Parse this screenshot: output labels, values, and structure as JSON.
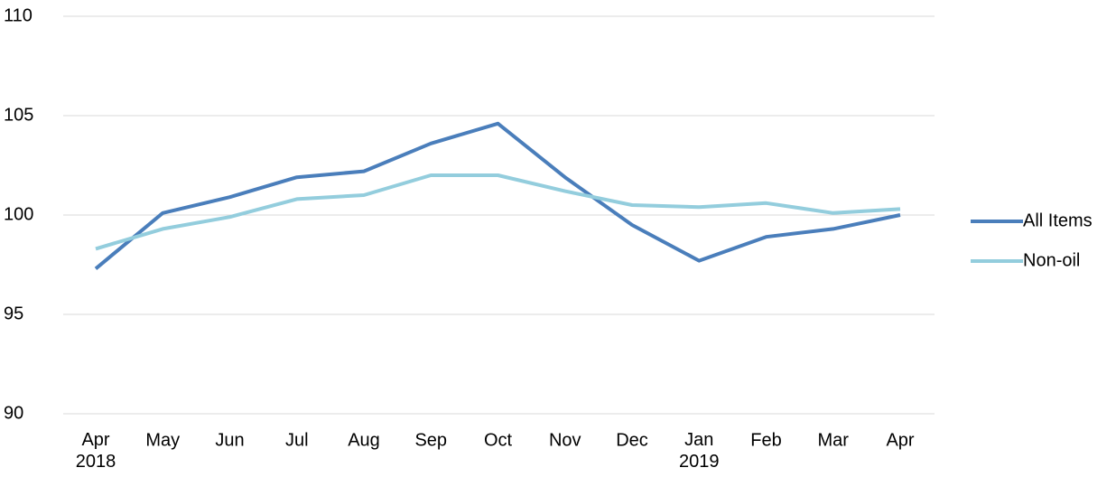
{
  "chart_data": {
    "type": "line",
    "categories": [
      "Apr\n2018",
      "May",
      "Jun",
      "Jul",
      "Aug",
      "Sep",
      "Oct",
      "Nov",
      "Dec",
      "Jan\n2019",
      "Feb",
      "Mar",
      "Apr"
    ],
    "series": [
      {
        "name": "All Items",
        "color": "#4a7ebb",
        "values": [
          97.3,
          100.1,
          100.9,
          101.9,
          102.2,
          103.6,
          104.6,
          101.9,
          99.5,
          97.7,
          98.9,
          99.3,
          100.0
        ]
      },
      {
        "name": "Non-oil",
        "color": "#93cddd",
        "values": [
          98.3,
          99.3,
          99.9,
          100.8,
          101.0,
          102.0,
          102.0,
          101.2,
          100.5,
          100.4,
          100.6,
          100.1,
          100.3
        ]
      }
    ],
    "ylim": [
      90,
      110
    ],
    "yticks": [
      90,
      95,
      100,
      105,
      110
    ],
    "grid": true,
    "legend": "right"
  }
}
